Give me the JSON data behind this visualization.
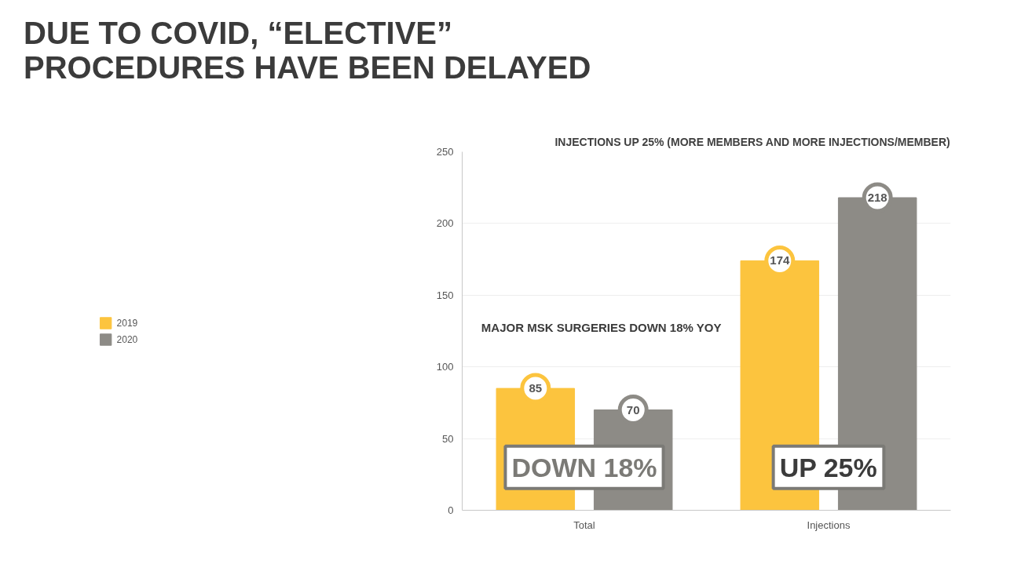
{
  "chart_data": {
    "type": "bar",
    "title": "DUE TO COVID, “ELECTIVE”\nPROCEDURES HAVE BEEN DELAYED",
    "subtitle": "INJECTIONS UP 25% (MORE MEMBERS AND MORE INJECTIONS/MEMBER)",
    "categories": [
      "Total",
      "Injections"
    ],
    "series": [
      {
        "name": "2019",
        "color": "#fcc43e",
        "values": [
          85,
          174
        ]
      },
      {
        "name": "2020",
        "color": "#8d8b86",
        "values": [
          70,
          218
        ]
      }
    ],
    "ylim": [
      0,
      250
    ],
    "yticks": [
      0,
      50,
      100,
      150,
      200,
      250
    ],
    "grid": "y",
    "legend": "left",
    "data_labels": true,
    "annotations": [
      "MAJOR MSK SURGERIES DOWN 18% YOY",
      "DOWN 18%",
      "UP 25%"
    ]
  }
}
